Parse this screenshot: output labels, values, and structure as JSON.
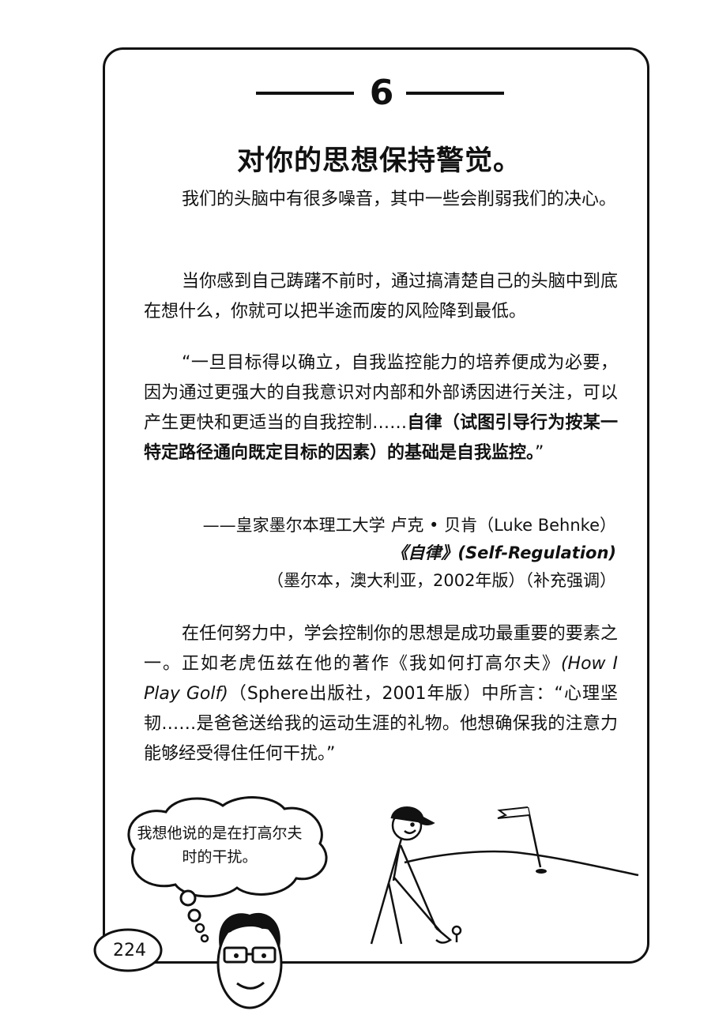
{
  "section_number": "6",
  "title": "对你的思想保持警觉。",
  "paragraph1": "我们的头脑中有很多噪音，其中一些会削弱我们的决心。",
  "paragraph2": "当你感到自己踌躇不前时，通过搞清楚自己的头脑中到底在想什么，你就可以把半途而废的风险降到最低。",
  "quote": {
    "regular": "“一旦目标得以确立，自我监控能力的培养便成为必要，因为通过更强大的自我意识对内部和外部诱因进行关注，可以产生更快和更适当的自我控制……",
    "bold": "自律（试图引导行为按某一特定路径通向既定目标的因素）的基础是自我监控。",
    "close": "”"
  },
  "citation": {
    "author": "——皇家墨尔本理工大学  卢克 • 贝肯（Luke Behnke）",
    "work": "《自律》(Self-Regulation)",
    "details": "（墨尔本，澳大利亚，2002年版）（补充强调）"
  },
  "paragraph3": {
    "part1": "在任何努力中，学会控制你的思想是成功最重要的要素之一。正如老虎伍兹在他的著作《我如何打高尔夫》",
    "italic": "(How I Play Golf)",
    "part2": "（Sphere出版社，2001年版）中所言：“心理坚韧……是爸爸送给我的运动生涯的礼物。他想确保我的注意力能够经受得住任何干扰。”"
  },
  "thought_bubble": "我想他说的是在打高尔夫时的干扰。",
  "page_number": "224"
}
